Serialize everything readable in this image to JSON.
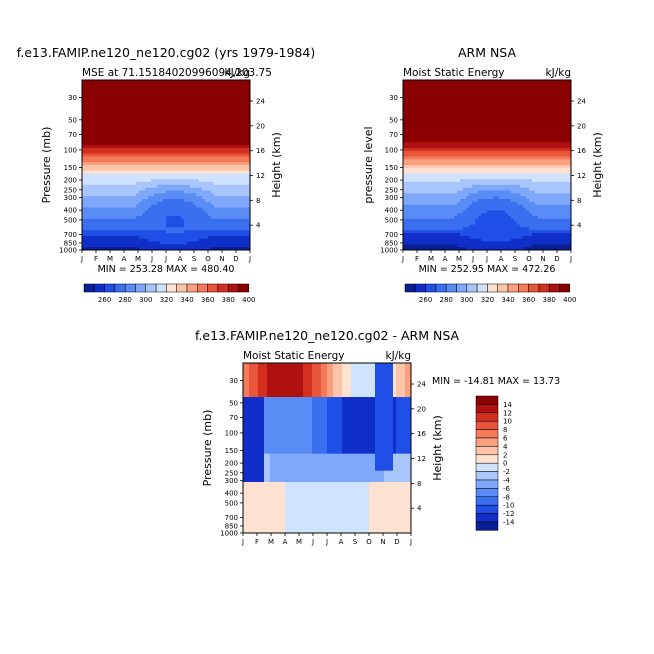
{
  "colors": {
    "palette": [
      "#0a1e96",
      "#0f2fc8",
      "#1f4fe6",
      "#3a6ff0",
      "#5a8cf5",
      "#7fa8fa",
      "#a8c6fc",
      "#cfe2fe",
      "#fde2d2",
      "#fcc4a8",
      "#f9a07e",
      "#f47a58",
      "#e8553a",
      "#d22f1e",
      "#b01010",
      "#8a0000"
    ]
  },
  "panels": [
    {
      "title": "f.e13.FAMIP.ne120_ne120.cg02 (yrs 1979-1984)",
      "left_label": "MSE at 71.15184020996094,203.75",
      "right_label": "kJ/kg",
      "ylabel_left": "Pressure (mb)",
      "ylabel_right": "Height (km)",
      "stats": "MIN = 253.28 MAX = 480.40"
    },
    {
      "title": "ARM NSA",
      "left_label": "Moist Static Energy",
      "right_label": "kJ/kg",
      "ylabel_left": "pressure level",
      "ylabel_right": "Height (km)",
      "stats": "MIN = 252.95 MAX = 472.26"
    },
    {
      "title": "f.e13.FAMIP.ne120_ne120.cg02 - ARM NSA",
      "left_label": "Moist Static Energy",
      "right_label": "kJ/kg",
      "ylabel_left": "Pressure (mb)",
      "ylabel_right": "Height (km)",
      "stats": "MIN = -14.81 MAX =  13.73"
    }
  ],
  "month_ticks": [
    "J",
    "F",
    "M",
    "A",
    "M",
    "J",
    "J",
    "A",
    "S",
    "O",
    "N",
    "D",
    "J"
  ],
  "pressure_ticks": [
    "30",
    "50",
    "70",
    "100",
    "150",
    "200",
    "250",
    "300",
    "400",
    "500",
    "700",
    "850",
    "1000"
  ],
  "height_ticks_top": [
    "24",
    "20",
    "16",
    "12",
    "8",
    "4"
  ],
  "height_ticks_bottom": [
    "24",
    "20",
    "16",
    "12",
    "8",
    "4"
  ],
  "colorbar_horizontal": [
    "260",
    "280",
    "300",
    "320",
    "340",
    "360",
    "380",
    "400"
  ],
  "colorbar_vertical": [
    "14",
    "12",
    "10",
    "8",
    "6",
    "4",
    "2",
    "0",
    "-2",
    "-4",
    "-6",
    "-8",
    "-10",
    "-12",
    "-14"
  ],
  "chart_data": [
    {
      "type": "heatmap",
      "title": "f.e13.FAMIP.ne120_ne120.cg02 (yrs 1979-1984)",
      "xlabel": "",
      "ylabel": "Pressure (mb)",
      "x": [
        "J",
        "F",
        "M",
        "A",
        "M",
        "J",
        "J",
        "A",
        "S",
        "O",
        "N",
        "D",
        "J"
      ],
      "y_pressure_mb": [
        30,
        50,
        70,
        100,
        150,
        200,
        250,
        300,
        400,
        500,
        700,
        850,
        1000
      ],
      "units": "kJ/kg",
      "min": 253.28,
      "max": 480.4,
      "contour_levels": [
        260,
        270,
        280,
        290,
        300,
        310,
        320,
        330,
        340,
        350,
        360,
        370,
        380,
        390,
        400
      ]
    },
    {
      "type": "heatmap",
      "title": "ARM NSA",
      "xlabel": "",
      "ylabel": "pressure level",
      "x": [
        "J",
        "F",
        "M",
        "A",
        "M",
        "J",
        "J",
        "A",
        "S",
        "O",
        "N",
        "D",
        "J"
      ],
      "y_pressure_mb": [
        30,
        50,
        70,
        100,
        150,
        200,
        250,
        300,
        400,
        500,
        700,
        850,
        1000
      ],
      "units": "kJ/kg",
      "min": 252.95,
      "max": 472.26,
      "contour_levels": [
        260,
        270,
        280,
        290,
        300,
        310,
        320,
        330,
        340,
        350,
        360,
        370,
        380,
        390,
        400
      ]
    },
    {
      "type": "heatmap",
      "title": "f.e13.FAMIP.ne120_ne120.cg02 - ARM NSA",
      "xlabel": "",
      "ylabel": "Pressure (mb)",
      "x": [
        "J",
        "F",
        "M",
        "A",
        "M",
        "J",
        "J",
        "A",
        "S",
        "O",
        "N",
        "D",
        "J"
      ],
      "y_pressure_mb": [
        30,
        50,
        70,
        100,
        150,
        200,
        250,
        300,
        400,
        500,
        700,
        850,
        1000
      ],
      "units": "kJ/kg",
      "min": -14.81,
      "max": 13.73,
      "contour_levels": [
        -14,
        -12,
        -10,
        -8,
        -6,
        -4,
        -2,
        0,
        2,
        4,
        6,
        8,
        10,
        12,
        14
      ]
    }
  ]
}
